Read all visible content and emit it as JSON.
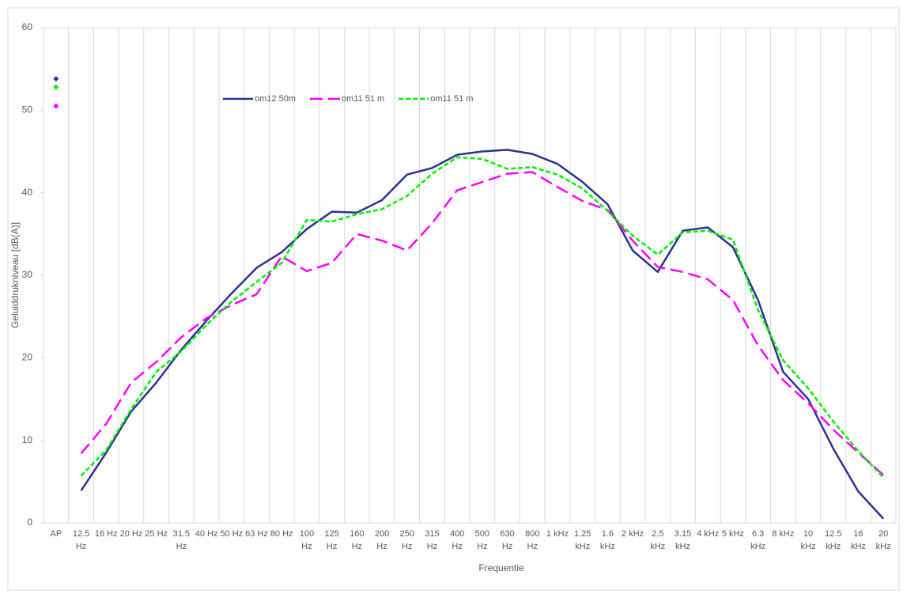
{
  "chart_data": {
    "type": "line",
    "x_label": "Frequentie",
    "y_label": "Geluiddrukniveau [dB(A)]",
    "categories": [
      "AP",
      "12.5 Hz",
      "16 Hz",
      "20 Hz",
      "25 Hz",
      "31.5 Hz",
      "40 Hz",
      "50 Hz",
      "63 Hz",
      "80 Hz",
      "100 Hz",
      "125 Hz",
      "160 Hz",
      "200 Hz",
      "250 Hz",
      "315 Hz",
      "400 Hz",
      "500 Hz",
      "630 Hz",
      "800 Hz",
      "1 kHz",
      "1.25 kHz",
      "1.6 kHz",
      "2 kHz",
      "2.5 kHz",
      "3.15 kHz",
      "4 kHz",
      "5 kHz",
      "6.3 kHz",
      "8 kHz",
      "10 kHz",
      "12.5 kHz",
      "16 kHz",
      "20 kHz"
    ],
    "series": [
      {
        "name": "om12 50m",
        "color": "#2e3192",
        "dash": "solid",
        "values": [
          53.8,
          3.9,
          8.5,
          13.5,
          17,
          21,
          24.5,
          27.8,
          30.9,
          32.8,
          35.6,
          37.7,
          37.6,
          39.1,
          42.2,
          43,
          44.6,
          45,
          45.2,
          44.7,
          43.5,
          41.3,
          38.6,
          33,
          30.4,
          35.4,
          35.8,
          33.4,
          27,
          18.3,
          15,
          9,
          3.8,
          0.5
        ]
      },
      {
        "name": "om11 51 m",
        "color": "#ff00ff",
        "dash": "long-dash",
        "values": [
          50.5,
          8.4,
          12,
          17,
          19.5,
          22.5,
          24.8,
          26.4,
          27.7,
          32.3,
          30.5,
          31.5,
          35,
          34.2,
          33,
          36.3,
          40.3,
          41.3,
          42.3,
          42.5,
          40.7,
          39,
          37.9,
          34.2,
          31,
          30.4,
          29.5,
          27,
          21.5,
          17.3,
          14.5,
          11.3,
          8.5,
          5.8
        ]
      },
      {
        "name": "om11 51 m",
        "color": "#00ee00",
        "dash": "short-dash",
        "values": [
          52.8,
          5.7,
          8.8,
          13.8,
          18.3,
          20.8,
          24,
          26.8,
          29.2,
          31.5,
          36.7,
          36.5,
          37.4,
          38,
          39.6,
          42.3,
          44.3,
          44.1,
          42.9,
          43.1,
          42.2,
          40.5,
          37.8,
          34.8,
          32.5,
          35.2,
          35.4,
          34.3,
          25.8,
          19.7,
          16.3,
          12.3,
          8.7,
          5.5
        ]
      }
    ],
    "ylim": [
      0,
      60
    ],
    "yticks": [
      0,
      10,
      20,
      30,
      40,
      50,
      60
    ],
    "xgrid": true,
    "ygrid": false,
    "legend": "top"
  }
}
